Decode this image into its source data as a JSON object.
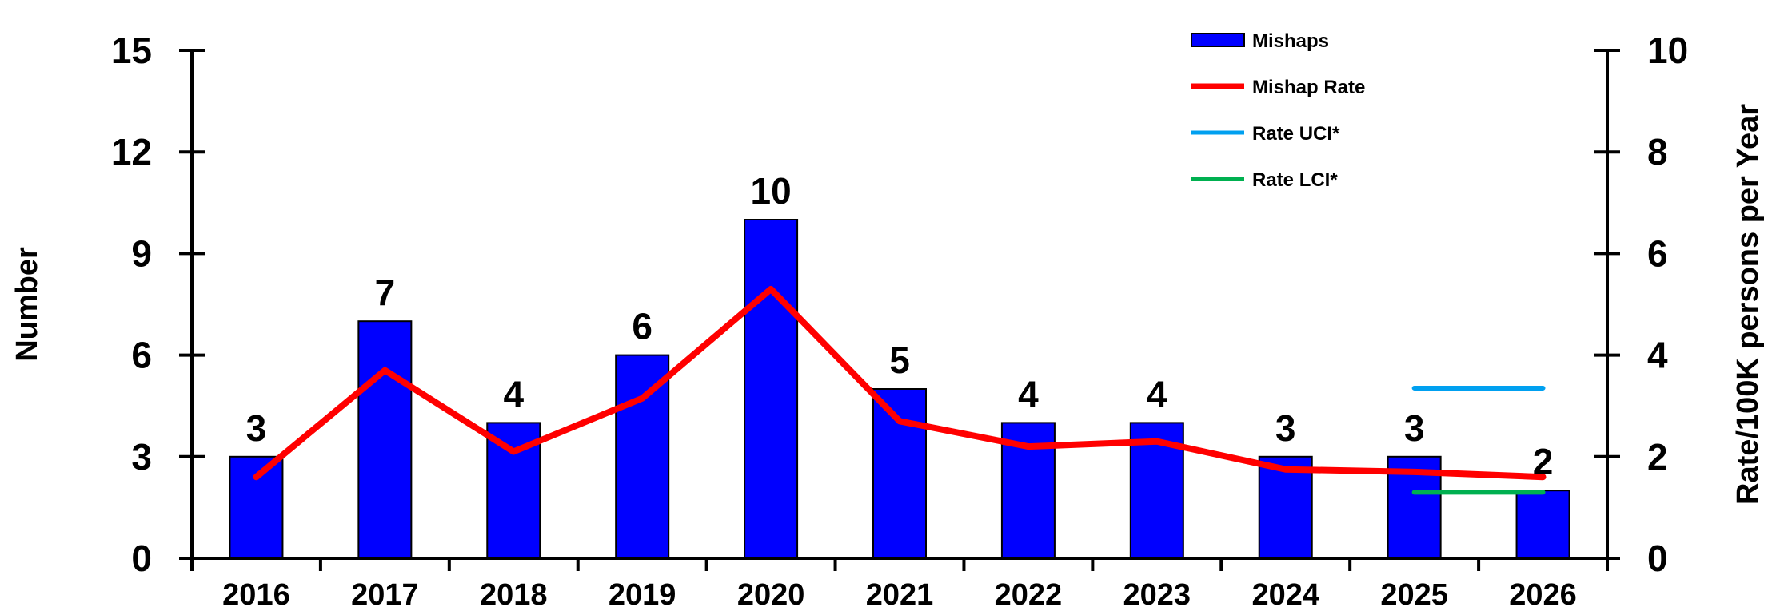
{
  "chart_data": {
    "type": "bar",
    "categories": [
      "2016",
      "2017",
      "2018",
      "2019",
      "2020",
      "2021",
      "2022",
      "2023",
      "2024",
      "2025",
      "2026"
    ],
    "series": [
      {
        "name": "Mishaps",
        "type": "bar",
        "axis": "left",
        "color": "#0000FF",
        "values": [
          3,
          7,
          4,
          6,
          10,
          5,
          4,
          4,
          3,
          3,
          2
        ]
      },
      {
        "name": "Mishap Rate",
        "type": "line",
        "axis": "right",
        "color": "#FF0000",
        "values": [
          1.6,
          3.7,
          2.1,
          3.15,
          5.3,
          2.7,
          2.2,
          2.3,
          1.75,
          1.7,
          1.6
        ]
      },
      {
        "name": "Rate UCI*",
        "type": "line",
        "axis": "right",
        "color": "#00A0F0",
        "x": [
          "2025",
          "2026"
        ],
        "values": [
          3.35,
          3.35
        ]
      },
      {
        "name": "Rate LCI*",
        "type": "line",
        "axis": "right",
        "color": "#00B050",
        "x": [
          "2025",
          "2026"
        ],
        "values": [
          1.3,
          1.3
        ]
      }
    ],
    "data_labels": [
      "3",
      "7",
      "4",
      "6",
      "10",
      "5",
      "4",
      "4",
      "3",
      "3",
      "2"
    ],
    "ylabel": "Number",
    "y2label": "Rate/100K persons per Year",
    "ylim": [
      0,
      15
    ],
    "y2lim": [
      0,
      10
    ],
    "yticks": [
      "0",
      "3",
      "6",
      "9",
      "12",
      "15"
    ],
    "y2ticks": [
      "0",
      "2",
      "4",
      "6",
      "8",
      "10"
    ],
    "grid": false,
    "legend_position": "top-right"
  }
}
